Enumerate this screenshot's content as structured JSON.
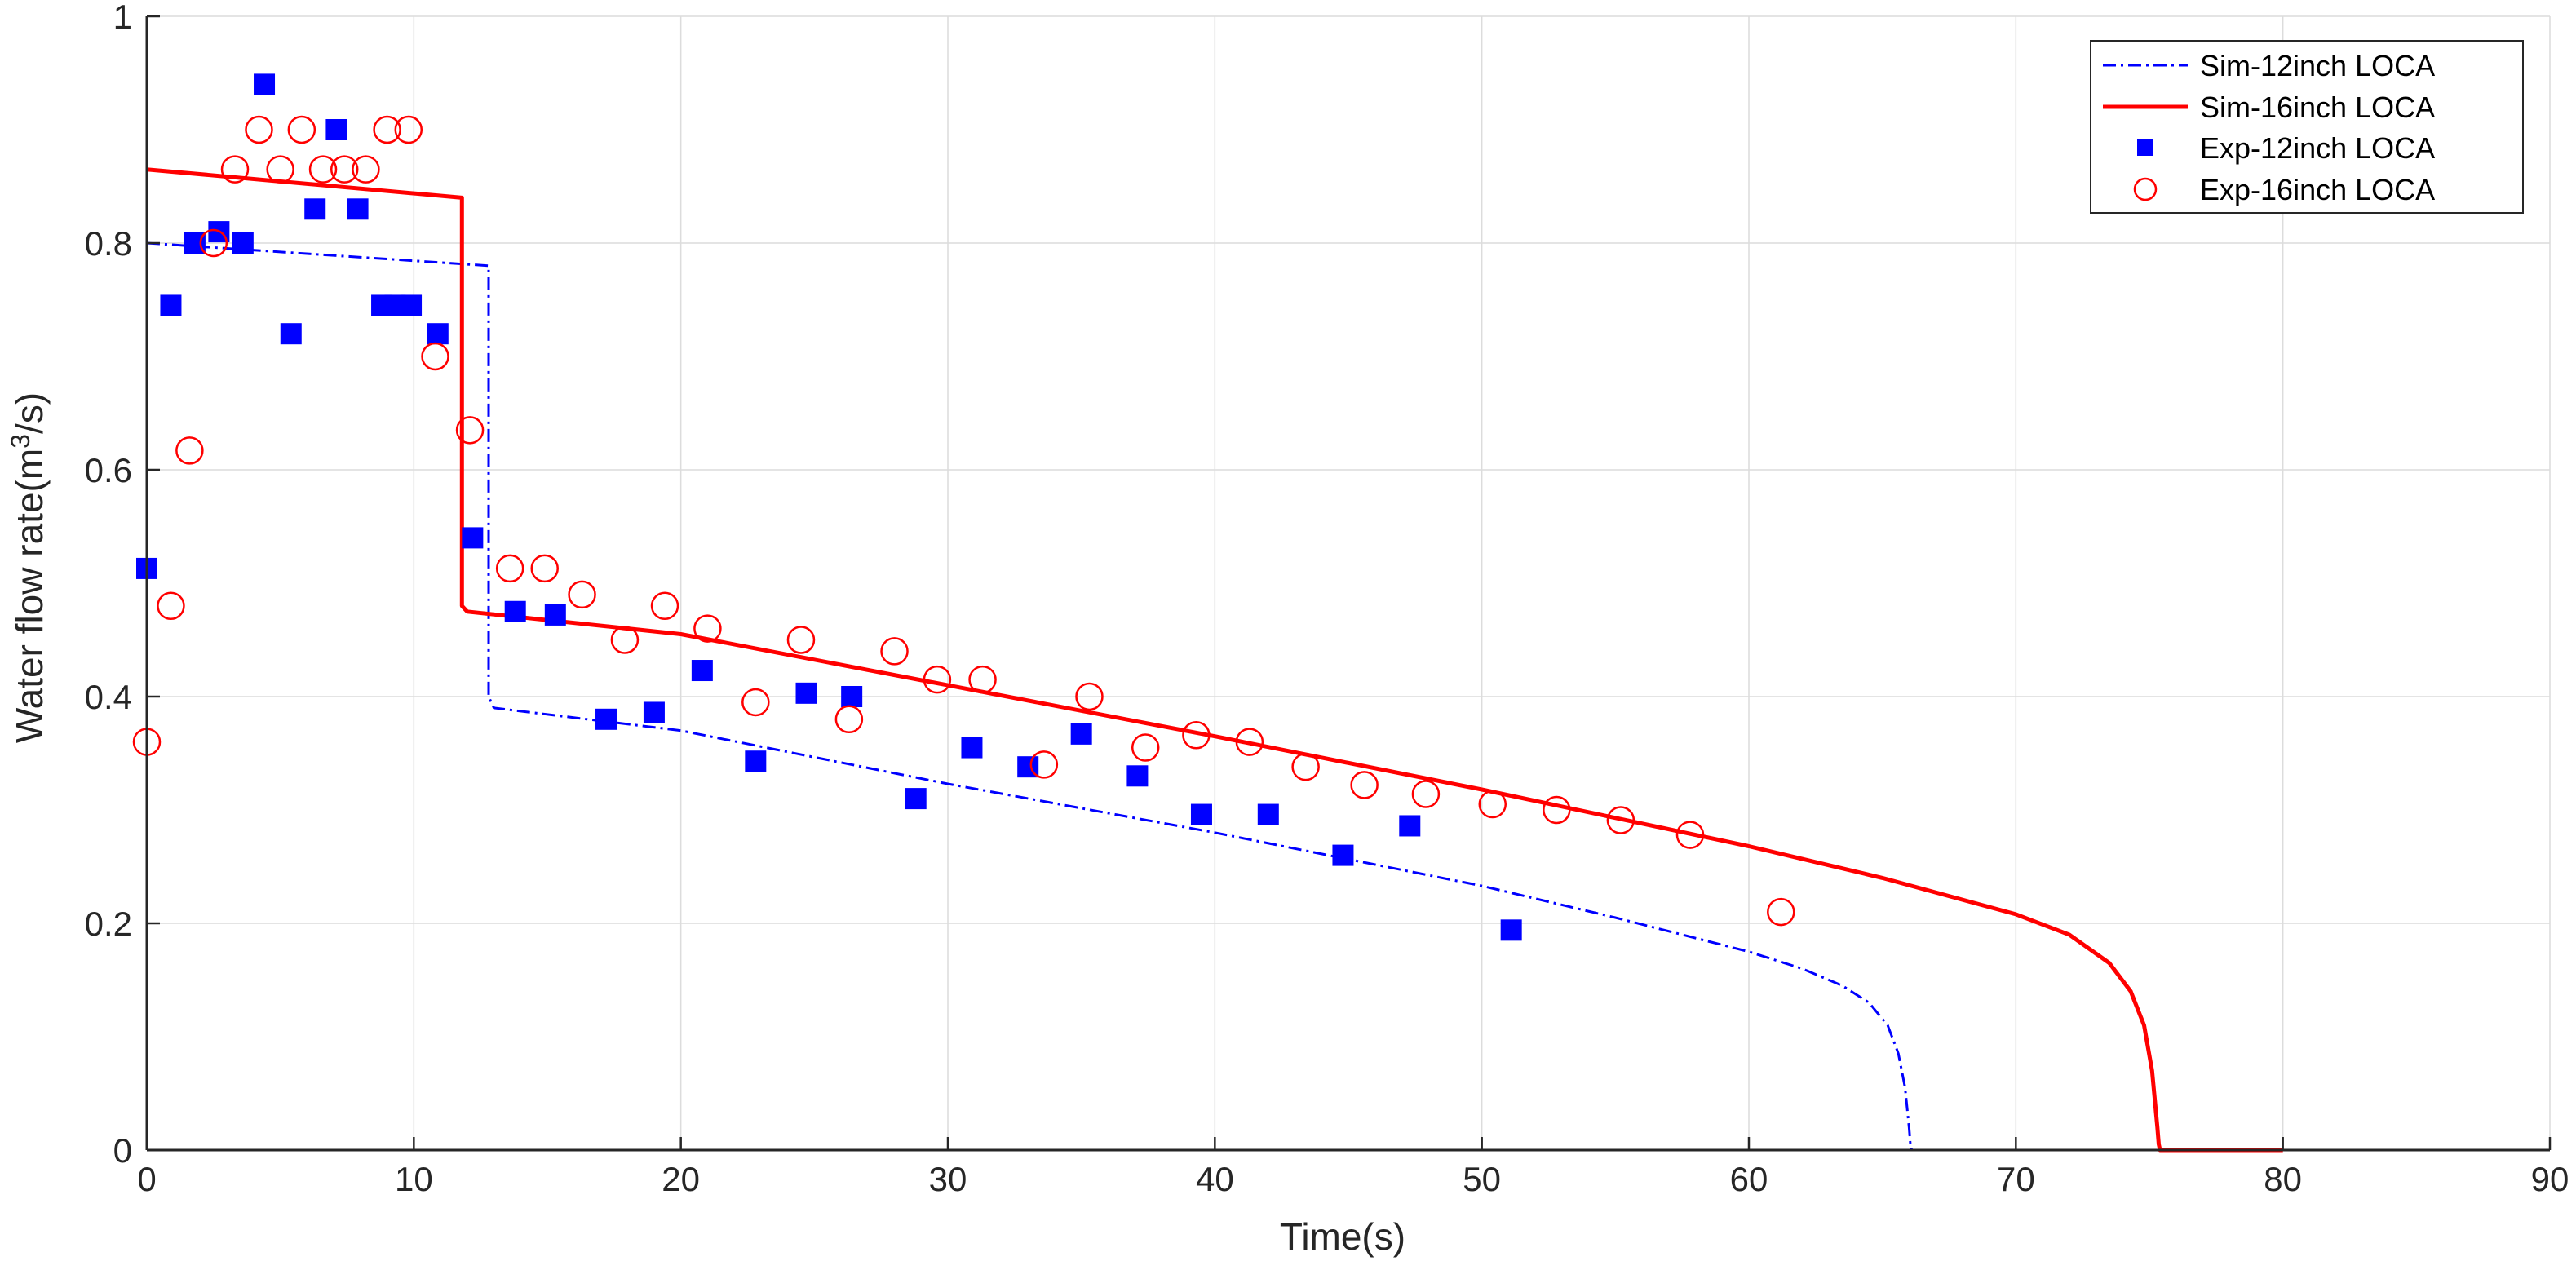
{
  "chart_data": {
    "type": "line",
    "title": "",
    "xlabel": "Time(s)",
    "ylabel_prefix": "Water flow rate(m",
    "ylabel_sup": "3",
    "ylabel_suffix": "/s)",
    "xlim": [
      0,
      90
    ],
    "ylim": [
      0,
      1
    ],
    "xticks": [
      0,
      10,
      20,
      30,
      40,
      50,
      60,
      70,
      80,
      90
    ],
    "yticks": [
      0,
      0.2,
      0.4,
      0.6,
      0.8,
      1
    ],
    "xtick_labels": [
      "0",
      "10",
      "20",
      "30",
      "40",
      "50",
      "60",
      "70",
      "80",
      "90"
    ],
    "ytick_labels": [
      "0",
      "0.2",
      "0.4",
      "0.6",
      "0.8",
      "1"
    ],
    "grid": true,
    "legend_position": "top-right",
    "colors": {
      "blue": "#0000ff",
      "red": "#ff0000",
      "axis": "#262626",
      "grid": "#dcdcdc"
    },
    "series": [
      {
        "name": "Sim-12inch LOCA",
        "kind": "line",
        "style": "dashdot",
        "color": "#0000ff",
        "x": [
          0,
          12.8,
          12.8,
          13,
          20,
          30,
          40,
          50,
          55,
          60,
          62,
          63.5,
          64.5,
          65.2,
          65.6,
          65.85,
          66.0,
          66.05,
          66.1,
          75.5
        ],
        "y": [
          0.8,
          0.78,
          0.4,
          0.39,
          0.37,
          0.323,
          0.28,
          0.233,
          0.205,
          0.175,
          0.16,
          0.145,
          0.13,
          0.11,
          0.085,
          0.055,
          0.02,
          0.005,
          0.0,
          0.0
        ]
      },
      {
        "name": "Sim-16inch LOCA",
        "kind": "line",
        "style": "solid",
        "color": "#ff0000",
        "x": [
          0,
          11.8,
          11.8,
          12,
          20,
          30,
          40,
          50,
          60,
          65,
          70,
          72,
          73.5,
          74.3,
          74.8,
          75.1,
          75.3,
          75.35,
          75.4,
          80
        ],
        "y": [
          0.865,
          0.84,
          0.48,
          0.475,
          0.455,
          0.41,
          0.365,
          0.318,
          0.268,
          0.24,
          0.208,
          0.19,
          0.165,
          0.14,
          0.11,
          0.07,
          0.02,
          0.005,
          0.0,
          0.0
        ]
      },
      {
        "name": "Exp-12inch LOCA",
        "kind": "scatter",
        "marker": "square",
        "color": "#0000ff",
        "x": [
          0,
          0.9,
          1.8,
          2.7,
          3.6,
          4.4,
          5.4,
          6.3,
          7.1,
          7.9,
          8.8,
          9.3,
          9.9,
          10.9,
          12.2,
          13.8,
          15.3,
          17.2,
          19.0,
          20.8,
          22.8,
          24.7,
          26.4,
          28.8,
          30.9,
          33.0,
          35.0,
          37.1,
          39.5,
          42.0,
          44.8,
          47.3,
          51.1
        ],
        "y": [
          0.513,
          0.745,
          0.8,
          0.81,
          0.8,
          0.94,
          0.72,
          0.83,
          0.9,
          0.83,
          0.745,
          0.745,
          0.745,
          0.72,
          0.54,
          0.475,
          0.472,
          0.38,
          0.386,
          0.423,
          0.343,
          0.403,
          0.4,
          0.31,
          0.355,
          0.338,
          0.367,
          0.33,
          0.296,
          0.296,
          0.26,
          0.286,
          0.194
        ]
      },
      {
        "name": "Exp-16inch LOCA",
        "kind": "scatter",
        "marker": "circle",
        "color": "#ff0000",
        "x": [
          0,
          0.9,
          1.6,
          2.5,
          3.3,
          4.2,
          5.0,
          5.8,
          6.6,
          7.4,
          8.2,
          9.0,
          9.8,
          10.8,
          12.1,
          13.6,
          14.9,
          16.3,
          17.9,
          19.4,
          21.0,
          22.8,
          24.5,
          26.3,
          28.0,
          29.6,
          31.3,
          33.6,
          35.3,
          37.4,
          39.3,
          41.3,
          43.4,
          45.6,
          47.9,
          50.4,
          52.8,
          55.2,
          57.8,
          61.2
        ],
        "y": [
          0.36,
          0.48,
          0.617,
          0.8,
          0.865,
          0.9,
          0.865,
          0.9,
          0.865,
          0.865,
          0.865,
          0.9,
          0.9,
          0.7,
          0.635,
          0.513,
          0.513,
          0.49,
          0.45,
          0.48,
          0.46,
          0.395,
          0.45,
          0.38,
          0.44,
          0.415,
          0.415,
          0.34,
          0.4,
          0.355,
          0.366,
          0.36,
          0.338,
          0.322,
          0.314,
          0.305,
          0.3,
          0.291,
          0.278,
          0.21
        ]
      }
    ]
  }
}
